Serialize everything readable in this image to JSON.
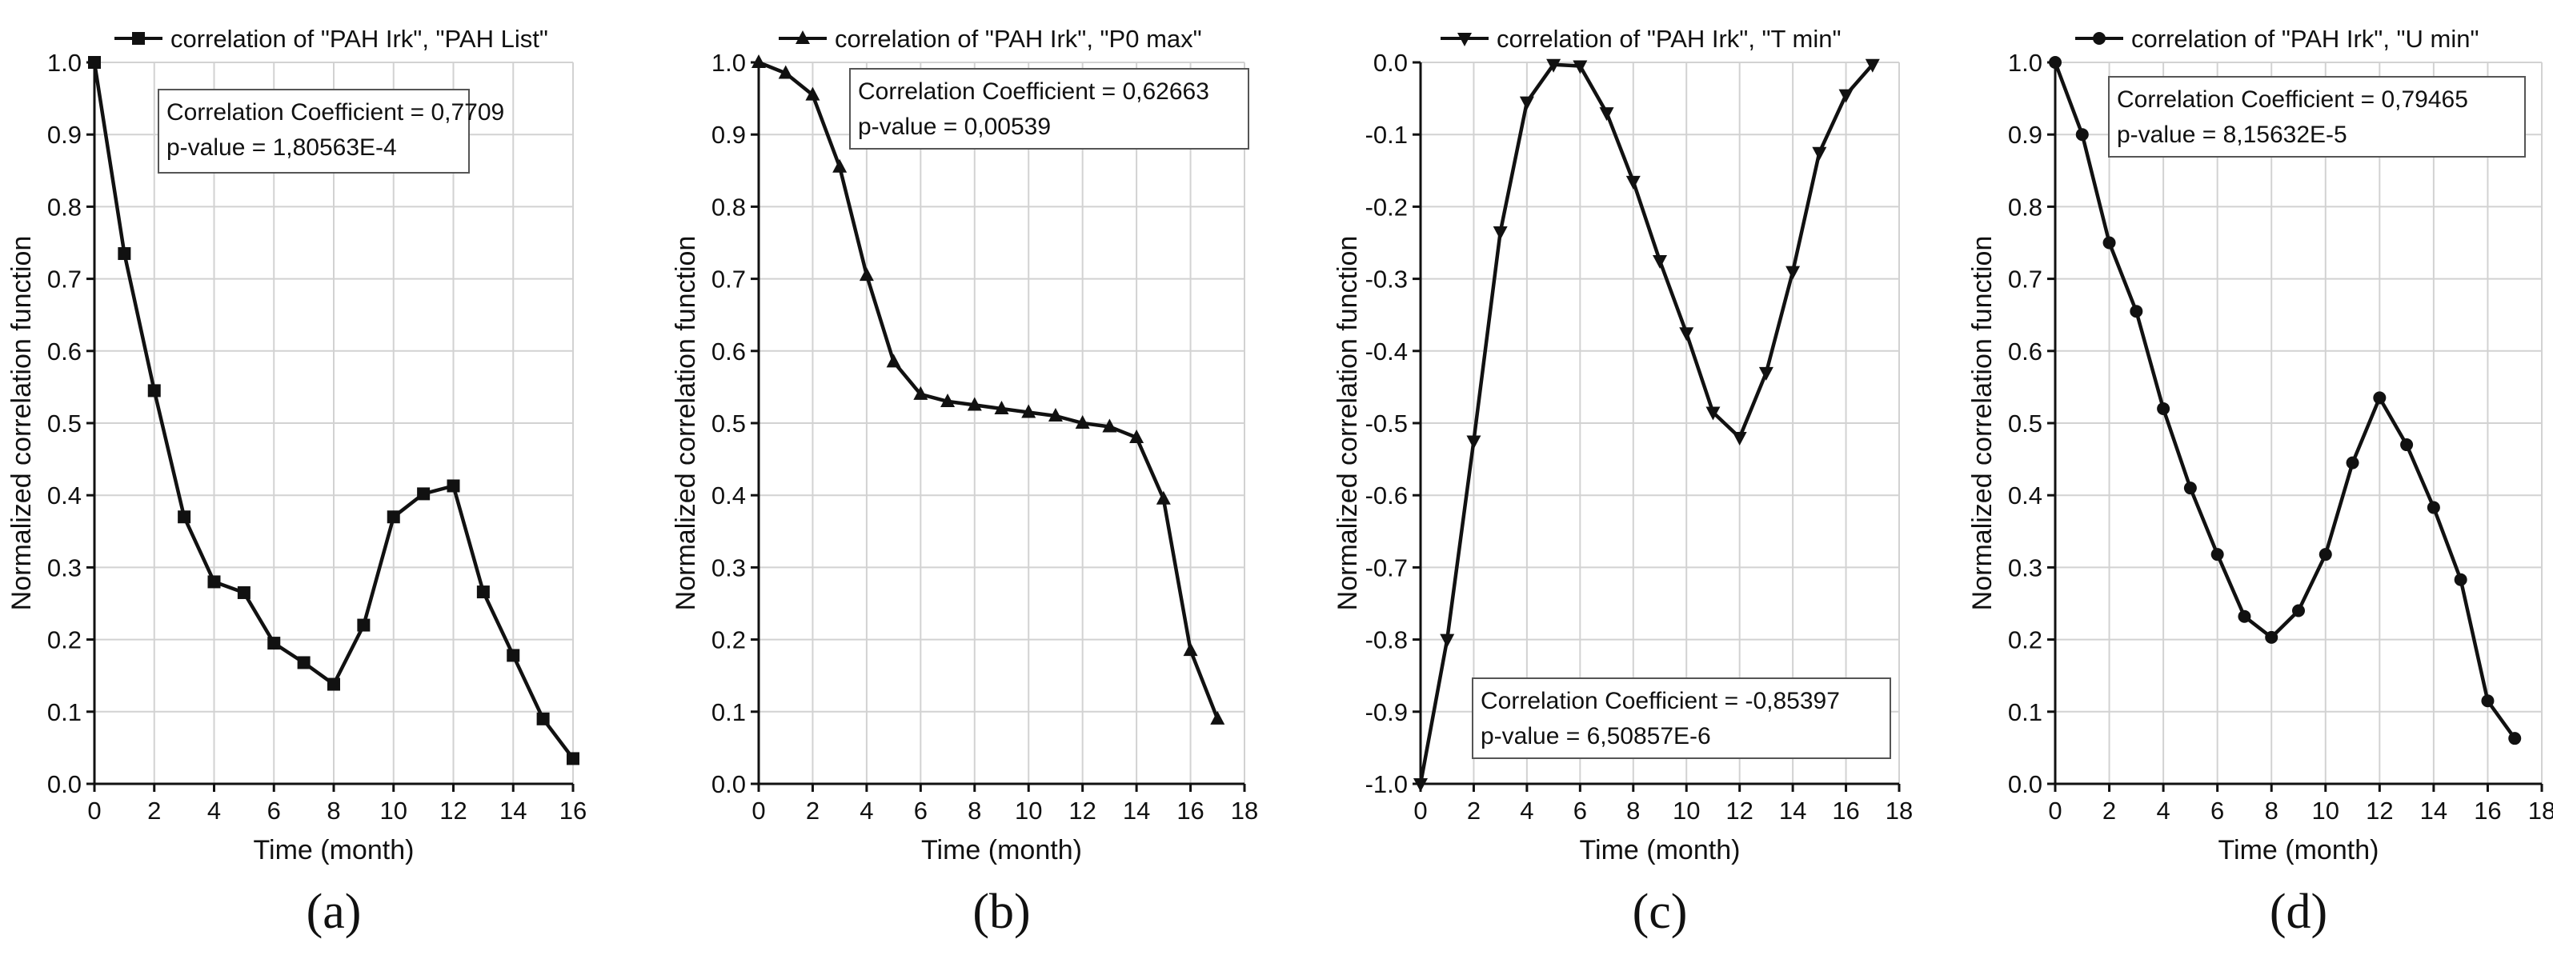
{
  "chart_data": [
    {
      "id": "a",
      "type": "line",
      "caption": "(a)",
      "xlabel": "Time (month)",
      "ylabel": "Normalized correlation function",
      "xlim": [
        0,
        16
      ],
      "ylim": [
        0.0,
        1.0
      ],
      "grid": true,
      "xticks": [
        0,
        2,
        4,
        6,
        8,
        10,
        12,
        14,
        16
      ],
      "xtick_labels": [
        "0",
        "2",
        "4",
        "6",
        "8",
        "10",
        "12",
        "14",
        "16"
      ],
      "yticks": [
        0.0,
        0.1,
        0.2,
        0.3,
        0.4,
        0.5,
        0.6,
        0.7,
        0.8,
        0.9,
        1.0
      ],
      "ytick_labels": [
        "0.0",
        "0.1",
        "0.2",
        "0.3",
        "0.4",
        "0.5",
        "0.6",
        "0.7",
        "0.8",
        "0.9",
        "1.0"
      ],
      "legend": "correlation of \"PAH Irk\", \"PAH List\"",
      "legend_position": "top",
      "marker": "square",
      "series": [
        {
          "name": "correlation of \"PAH Irk\", \"PAH List\"",
          "x": [
            0,
            1,
            2,
            3,
            4,
            5,
            6,
            7,
            8,
            9,
            10,
            11,
            12,
            13,
            14,
            15,
            16
          ],
          "y": [
            1.0,
            0.735,
            0.545,
            0.37,
            0.28,
            0.265,
            0.195,
            0.168,
            0.138,
            0.22,
            0.37,
            0.402,
            0.413,
            0.266,
            0.178,
            0.09,
            0.035
          ]
        }
      ],
      "annotation": {
        "position": "top-center",
        "lines": [
          "Correlation Coefficient = 0,7709",
          "p-value = 1,80563E-4"
        ]
      }
    },
    {
      "id": "b",
      "type": "line",
      "caption": "(b)",
      "xlabel": "Time (month)",
      "ylabel": "Normalized correlation function",
      "xlim": [
        0,
        18
      ],
      "ylim": [
        0.0,
        1.0
      ],
      "grid": true,
      "xticks": [
        0,
        2,
        4,
        6,
        8,
        10,
        12,
        14,
        16,
        18
      ],
      "xtick_labels": [
        "0",
        "2",
        "4",
        "6",
        "8",
        "10",
        "12",
        "14",
        "16",
        "18"
      ],
      "yticks": [
        0.0,
        0.1,
        0.2,
        0.3,
        0.4,
        0.5,
        0.6,
        0.7,
        0.8,
        0.9,
        1.0
      ],
      "ytick_labels": [
        "0.0",
        "0.1",
        "0.2",
        "0.3",
        "0.4",
        "0.5",
        "0.6",
        "0.7",
        "0.8",
        "0.9",
        "1.0"
      ],
      "legend": "correlation of \"PAH Irk\", \"P0 max\"",
      "legend_position": "top",
      "marker": "triangle-up",
      "series": [
        {
          "name": "correlation of \"PAH Irk\", \"P0 max\"",
          "x": [
            0,
            1,
            2,
            3,
            4,
            5,
            6,
            7,
            8,
            9,
            10,
            11,
            12,
            13,
            14,
            15,
            16,
            17
          ],
          "y": [
            1.0,
            0.985,
            0.955,
            0.855,
            0.705,
            0.585,
            0.54,
            0.53,
            0.525,
            0.52,
            0.515,
            0.51,
            0.5,
            0.495,
            0.48,
            0.395,
            0.185,
            0.09
          ]
        }
      ],
      "annotation": {
        "position": "top-right",
        "lines": [
          "Correlation Coefficient = 0,62663",
          "p-value = 0,00539"
        ]
      }
    },
    {
      "id": "c",
      "type": "line",
      "caption": "(c)",
      "xlabel": "Time (month)",
      "ylabel": "Normalized correlation function",
      "xlim": [
        0,
        18
      ],
      "ylim": [
        -1.0,
        0.0
      ],
      "grid": true,
      "xticks": [
        0,
        2,
        4,
        6,
        8,
        10,
        12,
        14,
        16,
        18
      ],
      "xtick_labels": [
        "0",
        "2",
        "4",
        "6",
        "8",
        "10",
        "12",
        "14",
        "16",
        "18"
      ],
      "yticks": [
        -1.0,
        -0.9,
        -0.8,
        -0.7,
        -0.6,
        -0.5,
        -0.4,
        -0.3,
        -0.2,
        -0.1,
        0.0
      ],
      "ytick_labels": [
        "-1.0",
        "-0.9",
        "-0.8",
        "-0.7",
        "-0.6",
        "-0.5",
        "-0.4",
        "-0.3",
        "-0.2",
        "-0.1",
        "0.0"
      ],
      "legend": "correlation of \"PAH Irk\", \"T min\"",
      "legend_position": "top",
      "marker": "triangle-down",
      "series": [
        {
          "name": "correlation of \"PAH Irk\", \"T min\"",
          "x": [
            0,
            1,
            2,
            3,
            4,
            5,
            6,
            7,
            8,
            9,
            10,
            11,
            12,
            13,
            14,
            15,
            16,
            17
          ],
          "y": [
            -1.0,
            -0.8,
            -0.525,
            -0.235,
            -0.055,
            -0.003,
            -0.005,
            -0.07,
            -0.165,
            -0.275,
            -0.375,
            -0.485,
            -0.52,
            -0.43,
            -0.29,
            -0.125,
            -0.045,
            -0.003
          ]
        }
      ],
      "annotation": {
        "position": "bottom-right",
        "lines": [
          "Correlation Coefficient = -0,85397",
          "p-value = 6,50857E-6"
        ]
      }
    },
    {
      "id": "d",
      "type": "line",
      "caption": "(d)",
      "xlabel": "Time (month)",
      "ylabel": "Normalized correlation function",
      "xlim": [
        0,
        18
      ],
      "ylim": [
        0.0,
        1.0
      ],
      "grid": true,
      "xticks": [
        0,
        2,
        4,
        6,
        8,
        10,
        12,
        14,
        16,
        18
      ],
      "xtick_labels": [
        "0",
        "2",
        "4",
        "6",
        "8",
        "10",
        "12",
        "14",
        "16",
        "18"
      ],
      "yticks": [
        0.0,
        0.1,
        0.2,
        0.3,
        0.4,
        0.5,
        0.6,
        0.7,
        0.8,
        0.9,
        1.0
      ],
      "ytick_labels": [
        "0.0",
        "0.1",
        "0.2",
        "0.3",
        "0.4",
        "0.5",
        "0.6",
        "0.7",
        "0.8",
        "0.9",
        "1.0"
      ],
      "legend": "correlation of \"PAH Irk\", \"U min\"",
      "legend_position": "top",
      "marker": "circle",
      "series": [
        {
          "name": "correlation of \"PAH Irk\", \"U min\"",
          "x": [
            0,
            1,
            2,
            3,
            4,
            5,
            6,
            7,
            8,
            9,
            10,
            11,
            12,
            13,
            14,
            15,
            16,
            17
          ],
          "y": [
            1.0,
            0.9,
            0.75,
            0.655,
            0.52,
            0.41,
            0.318,
            0.232,
            0.203,
            0.24,
            0.318,
            0.445,
            0.535,
            0.47,
            0.383,
            0.283,
            0.115,
            0.063
          ]
        }
      ],
      "annotation": {
        "position": "top-right",
        "lines": [
          "Correlation Coefficient = 0,79465",
          "p-value = 8,15632E-5"
        ]
      }
    }
  ]
}
